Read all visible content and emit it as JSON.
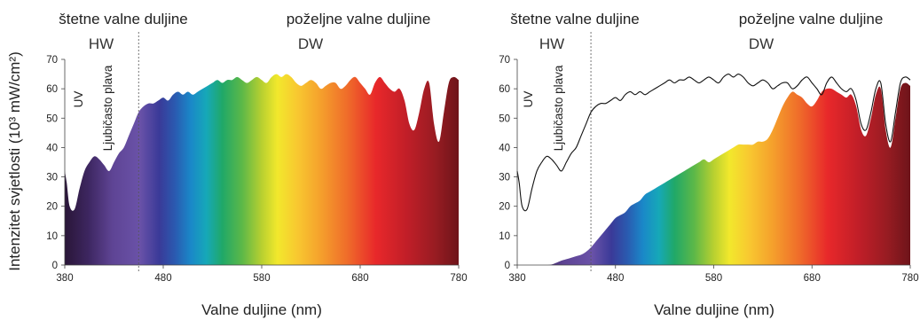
{
  "y_axis_label": "Intenzitet svjetlosti (10³ mW/cm²)",
  "chart_data": [
    {
      "type": "area",
      "panel": "left",
      "xlabel": "Valne duljine (nm)",
      "xlim": [
        380,
        780
      ],
      "ylim": [
        0,
        70
      ],
      "x_ticks": [
        "380",
        "480",
        "580",
        "680",
        "780"
      ],
      "y_ticks": [
        "0",
        "10",
        "20",
        "30",
        "40",
        "50",
        "60",
        "70"
      ],
      "region_labels": {
        "harmful": "štetne valne duljine",
        "desirable": "poželjne valne duljine"
      },
      "region_abbr": {
        "harmful": "HW",
        "desirable": "DW"
      },
      "band_labels": {
        "uv": "UV",
        "violet_blue": "Ljubičasto plava"
      },
      "divider_x": 455,
      "series": [
        {
          "fill": "spectrum",
          "x": [
            380,
            382,
            385,
            390,
            395,
            400,
            405,
            410,
            415,
            420,
            425,
            430,
            435,
            440,
            445,
            450,
            455,
            460,
            465,
            470,
            475,
            480,
            485,
            490,
            495,
            500,
            505,
            510,
            515,
            520,
            525,
            530,
            535,
            540,
            545,
            550,
            555,
            560,
            565,
            570,
            575,
            580,
            585,
            590,
            595,
            600,
            605,
            610,
            615,
            620,
            625,
            630,
            635,
            640,
            645,
            650,
            655,
            660,
            665,
            670,
            675,
            680,
            685,
            690,
            695,
            700,
            705,
            710,
            715,
            720,
            725,
            730,
            735,
            740,
            745,
            750,
            755,
            760,
            765,
            770,
            775,
            780
          ],
          "values": [
            32,
            28,
            20,
            19,
            26,
            32,
            35,
            37,
            36,
            34,
            32,
            35,
            38,
            40,
            44,
            48,
            52,
            54,
            55,
            55,
            56,
            57,
            56,
            58,
            59,
            58,
            59,
            58,
            59,
            60,
            61,
            62,
            63,
            62,
            63,
            63,
            64,
            63,
            62,
            63,
            64,
            63,
            62,
            64,
            65,
            64,
            65,
            64,
            62,
            61,
            62,
            63,
            62,
            60,
            61,
            62,
            62,
            60,
            61,
            63,
            64,
            62,
            60,
            58,
            62,
            64,
            62,
            60,
            59,
            60,
            56,
            48,
            46,
            52,
            60,
            62,
            48,
            42,
            52,
            62,
            64,
            63
          ]
        }
      ]
    },
    {
      "type": "area",
      "panel": "right",
      "xlabel": "Valne duljine (nm)",
      "xlim": [
        380,
        780
      ],
      "ylim": [
        0,
        70
      ],
      "x_ticks": [
        "380",
        "480",
        "580",
        "680",
        "780"
      ],
      "y_ticks": [
        "0",
        "10",
        "20",
        "30",
        "40",
        "50",
        "60",
        "70"
      ],
      "region_labels": {
        "harmful": "štetne valne duljine",
        "desirable": "poželjne valne duljine"
      },
      "region_abbr": {
        "harmful": "HW",
        "desirable": "DW"
      },
      "band_labels": {
        "uv": "UV",
        "violet_blue": "Ljubičasto plava"
      },
      "divider_x": 455,
      "series": [
        {
          "fill": "spectrum",
          "x": [
            380,
            390,
            400,
            410,
            415,
            420,
            425,
            430,
            435,
            440,
            445,
            450,
            455,
            460,
            465,
            470,
            475,
            480,
            485,
            490,
            495,
            500,
            505,
            510,
            515,
            520,
            525,
            530,
            535,
            540,
            545,
            550,
            555,
            560,
            565,
            570,
            575,
            580,
            585,
            590,
            595,
            600,
            605,
            610,
            615,
            620,
            625,
            630,
            635,
            640,
            645,
            650,
            655,
            660,
            665,
            670,
            675,
            680,
            685,
            690,
            695,
            700,
            705,
            710,
            715,
            720,
            725,
            730,
            735,
            740,
            745,
            750,
            755,
            760,
            765,
            770,
            775,
            780
          ],
          "values": [
            0,
            0,
            0,
            0,
            0.2,
            0.8,
            1.5,
            2,
            2.5,
            3,
            3.5,
            4.5,
            6,
            8,
            10,
            12,
            14,
            16,
            17,
            18,
            20,
            21,
            22,
            24,
            25,
            26,
            27,
            28,
            29,
            30,
            31,
            32,
            33,
            34,
            35,
            36,
            35,
            36,
            37,
            38,
            39,
            40,
            41,
            41,
            41,
            41,
            42,
            42,
            43,
            46,
            50,
            54,
            57,
            59,
            58,
            57,
            55,
            54,
            56,
            59,
            60,
            60,
            59,
            58,
            57,
            58,
            54,
            46,
            44,
            50,
            58,
            60,
            46,
            40,
            50,
            60,
            62,
            61
          ]
        },
        {
          "fill": "none",
          "x": [
            380,
            382,
            385,
            390,
            395,
            400,
            405,
            410,
            415,
            420,
            425,
            430,
            435,
            440,
            445,
            450,
            455,
            460,
            465,
            470,
            475,
            480,
            485,
            490,
            495,
            500,
            505,
            510,
            515,
            520,
            525,
            530,
            535,
            540,
            545,
            550,
            555,
            560,
            565,
            570,
            575,
            580,
            585,
            590,
            595,
            600,
            605,
            610,
            615,
            620,
            625,
            630,
            635,
            640,
            645,
            650,
            655,
            660,
            665,
            670,
            675,
            680,
            685,
            690,
            695,
            700,
            705,
            710,
            715,
            720,
            725,
            730,
            735,
            740,
            745,
            750,
            755,
            760,
            765,
            770,
            775,
            780
          ],
          "values": [
            32,
            28,
            20,
            19,
            26,
            32,
            35,
            37,
            36,
            34,
            32,
            35,
            38,
            40,
            44,
            48,
            52,
            54,
            55,
            55,
            56,
            57,
            56,
            58,
            59,
            58,
            59,
            58,
            59,
            60,
            61,
            62,
            63,
            62,
            63,
            63,
            64,
            63,
            62,
            63,
            64,
            63,
            62,
            64,
            65,
            64,
            65,
            64,
            62,
            61,
            62,
            63,
            62,
            60,
            61,
            62,
            62,
            60,
            61,
            63,
            64,
            62,
            60,
            58,
            62,
            64,
            62,
            60,
            59,
            60,
            56,
            48,
            46,
            52,
            60,
            62,
            48,
            42,
            52,
            62,
            64,
            63
          ]
        }
      ]
    }
  ]
}
